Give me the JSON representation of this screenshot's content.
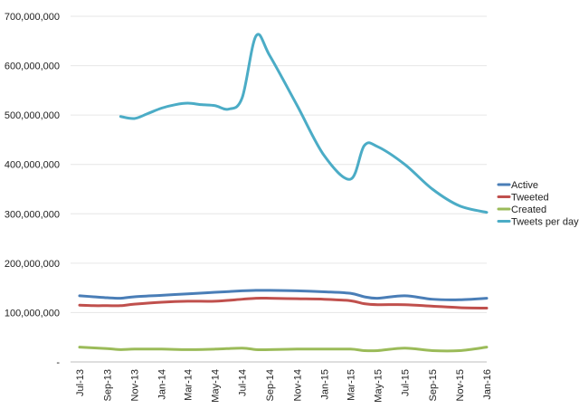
{
  "chart_data": {
    "type": "line",
    "ylim": [
      0,
      700000000
    ],
    "y_ticks": [
      "700,000,000",
      "600,000,000",
      "500,000,000",
      "400,000,000",
      "300,000,000",
      "200,000,000",
      "100,000,000",
      "-"
    ],
    "x_tick_labels": [
      "Jul-13",
      "Sep-13",
      "Nov-13",
      "Jan-14",
      "Mar-14",
      "May-14",
      "Jul-14",
      "Sep-14",
      "Nov-14",
      "Jan-15",
      "Mar-15",
      "May-15",
      "Jul-15",
      "Sep-15",
      "Nov-15",
      "Jan-16"
    ],
    "grid": "horizontal",
    "legend_position": "right",
    "series": [
      {
        "name": "Active",
        "color": "#4a7eb7",
        "x": [
          "2013-07-01",
          "2013-08-01",
          "2013-09-01",
          "2013-10-01",
          "2013-11-01",
          "2014-01-01",
          "2014-03-01",
          "2014-05-01",
          "2014-07-01",
          "2014-08-01",
          "2014-09-01",
          "2014-11-01",
          "2015-01-01",
          "2015-03-01",
          "2015-04-01",
          "2015-05-01",
          "2015-07-01",
          "2015-09-01",
          "2015-11-01",
          "2016-01-01"
        ],
        "values": [
          134000000,
          132000000,
          130000000,
          129000000,
          132000000,
          135000000,
          138000000,
          141000000,
          144000000,
          145000000,
          145000000,
          144000000,
          142000000,
          139000000,
          132000000,
          129000000,
          134000000,
          127000000,
          126000000,
          129000000
        ]
      },
      {
        "name": "Tweeted",
        "color": "#c0504d",
        "x": [
          "2013-07-01",
          "2013-08-01",
          "2013-09-01",
          "2013-10-01",
          "2013-11-01",
          "2014-01-01",
          "2014-03-01",
          "2014-05-01",
          "2014-07-01",
          "2014-08-01",
          "2014-09-01",
          "2014-11-01",
          "2015-01-01",
          "2015-03-01",
          "2015-04-01",
          "2015-05-01",
          "2015-07-01",
          "2015-09-01",
          "2015-11-01",
          "2016-01-01"
        ],
        "values": [
          115000000,
          114000000,
          114000000,
          114000000,
          117000000,
          121000000,
          123000000,
          123000000,
          127000000,
          129000000,
          129000000,
          128000000,
          127000000,
          124000000,
          118000000,
          116000000,
          116000000,
          113000000,
          110000000,
          109000000
        ]
      },
      {
        "name": "Created",
        "color": "#9bbb59",
        "x": [
          "2013-07-01",
          "2013-09-01",
          "2013-10-01",
          "2013-11-01",
          "2014-01-01",
          "2014-03-01",
          "2014-05-01",
          "2014-07-01",
          "2014-08-01",
          "2014-09-01",
          "2014-11-01",
          "2015-01-01",
          "2015-03-01",
          "2015-04-01",
          "2015-05-01",
          "2015-07-01",
          "2015-09-01",
          "2015-11-01",
          "2016-01-01"
        ],
        "values": [
          30000000,
          27000000,
          25000000,
          26000000,
          26000000,
          25000000,
          26000000,
          28000000,
          25000000,
          25000000,
          26000000,
          26000000,
          26000000,
          23000000,
          23000000,
          28000000,
          23000000,
          23000000,
          30000000
        ]
      },
      {
        "name": "Tweets per day",
        "color": "#4bacc6",
        "x": [
          "2013-10-01",
          "2013-11-01",
          "2013-12-01",
          "2014-01-01",
          "2014-02-01",
          "2014-03-01",
          "2014-04-01",
          "2014-05-01",
          "2014-06-01",
          "2014-07-01",
          "2014-08-01",
          "2014-09-01",
          "2014-11-01",
          "2015-01-01",
          "2015-03-01",
          "2015-04-01",
          "2015-05-01",
          "2015-07-01",
          "2015-09-01",
          "2015-11-01",
          "2016-01-01"
        ],
        "values": [
          497000000,
          493000000,
          503000000,
          514000000,
          521000000,
          524000000,
          521000000,
          519000000,
          512000000,
          535000000,
          660000000,
          620000000,
          520000000,
          418000000,
          370000000,
          438000000,
          436000000,
          400000000,
          350000000,
          316000000,
          303000000
        ]
      }
    ]
  }
}
